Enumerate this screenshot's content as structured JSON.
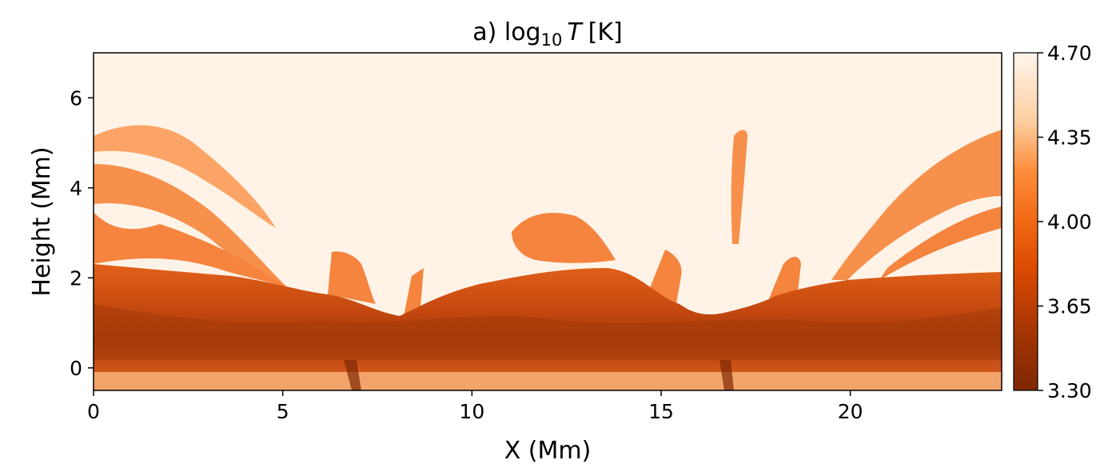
{
  "chart_data": {
    "type": "heatmap",
    "title": "a) log",
    "title_subscript": "10",
    "title_symbol": "T",
    "title_unit": "[K]",
    "xlabel": "X (Mm)",
    "ylabel": "Height (Mm)",
    "xlim": [
      0,
      24
    ],
    "ylim": [
      -0.5,
      7
    ],
    "xticks": [
      0,
      5,
      10,
      15,
      20
    ],
    "xtick_labels": [
      "0",
      "5",
      "10",
      "15",
      "20"
    ],
    "yticks": [
      0,
      2,
      4,
      6
    ],
    "ytick_labels": [
      "0",
      "2",
      "4",
      "6"
    ],
    "colorbar": {
      "range": [
        3.3,
        4.7
      ],
      "ticks": [
        3.3,
        3.65,
        4.0,
        4.35,
        4.7
      ],
      "tick_labels": [
        "3.30",
        "3.65",
        "4.00",
        "4.35",
        "4.70"
      ],
      "colormap": "Oranges_r",
      "low_color": "#7f2704",
      "mid_color": "#f16913",
      "high_color": "#fff5eb"
    },
    "grid": false
  }
}
